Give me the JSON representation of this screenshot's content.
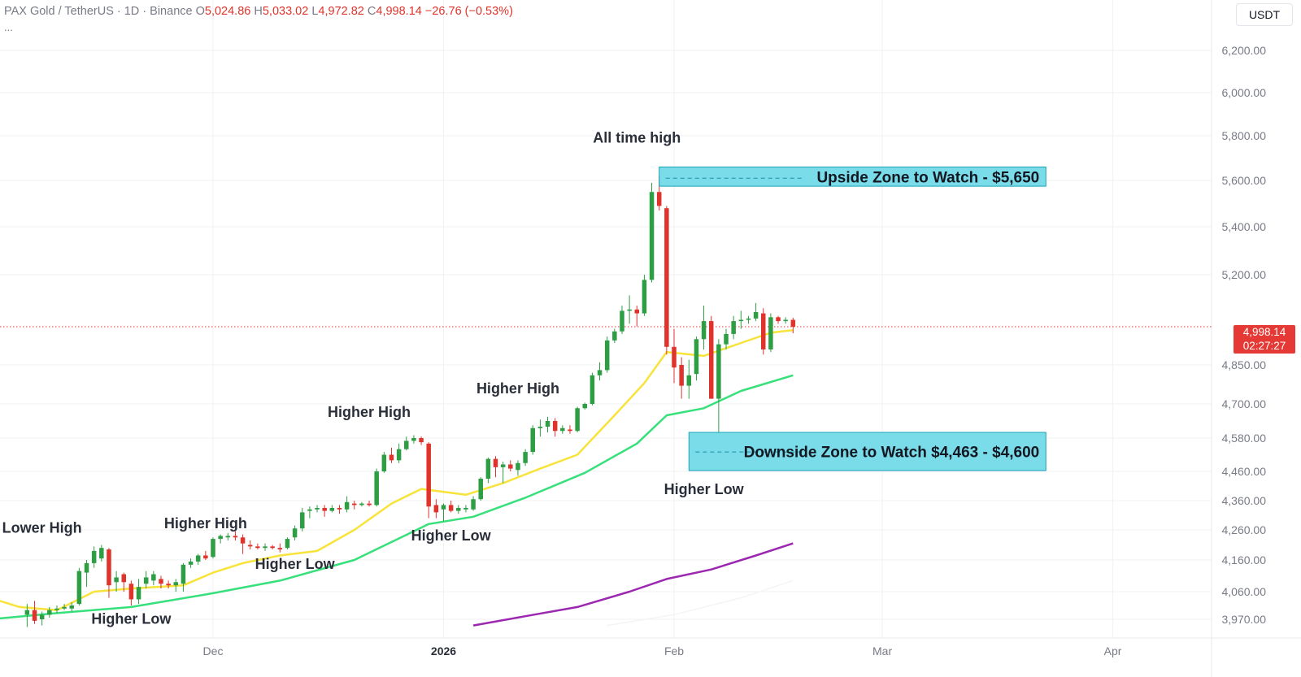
{
  "header": {
    "symbol": "PAX Gold / TetherUS · 1D · Binance",
    "open_label": "O",
    "open": "5,024.86",
    "high_label": "H",
    "high": "5,033.02",
    "low_label": "L",
    "low": "4,972.82",
    "close_label": "C",
    "close": "4,998.14",
    "change": "−26.76 (−0.53%)",
    "more": "..."
  },
  "currency_button": "USDT",
  "price_tag": {
    "price": "4,998.14",
    "countdown": "02:27:27"
  },
  "colors": {
    "up": "#2e9e44",
    "down": "#e0332c",
    "ema_fast": "#f8e33a",
    "ema_mid": "#36e07a",
    "ema_slow": "#9c27b0",
    "zone_fill": "#79dce8",
    "zone_border": "#1aa3b8",
    "grid": "#f0f1f3",
    "axis_text": "#787b86"
  },
  "chart_data": {
    "type": "candlestick",
    "y_axis": {
      "tick_labels": [
        "6,200.00",
        "6,000.00",
        "5,800.00",
        "5,600.00",
        "5,400.00",
        "5,200.00",
        "4,850.00",
        "4,700.00",
        "4,580.00",
        "4,460.00",
        "4,360.00",
        "4,260.00",
        "4,160.00",
        "4,060.00",
        "3,970.00"
      ],
      "tick_values": [
        6200,
        6000,
        5800,
        5600,
        5400,
        5200,
        4850,
        4700,
        4580,
        4460,
        4360,
        4260,
        4160,
        4060,
        3970
      ]
    },
    "x_axis": {
      "labels": [
        {
          "label": "Dec",
          "x": "2025-12-01",
          "bold": false
        },
        {
          "label": "2026",
          "x": "2026-01-01",
          "bold": true
        },
        {
          "label": "Feb",
          "x": "2026-02-01",
          "bold": false
        },
        {
          "label": "Mar",
          "x": "2026-03-01",
          "bold": false
        },
        {
          "label": "Apr",
          "x": "2026-04-01",
          "bold": false
        }
      ]
    },
    "candles": [
      {
        "date": "2025-11-06",
        "o": 3985,
        "h": 4020,
        "l": 3945,
        "c": 4000
      },
      {
        "date": "2025-11-07",
        "o": 4000,
        "h": 4030,
        "l": 3955,
        "c": 3965
      },
      {
        "date": "2025-11-08",
        "o": 3970,
        "h": 3995,
        "l": 3950,
        "c": 3985
      },
      {
        "date": "2025-11-09",
        "o": 3985,
        "h": 4010,
        "l": 3975,
        "c": 4000
      },
      {
        "date": "2025-11-10",
        "o": 4000,
        "h": 4015,
        "l": 3990,
        "c": 4005
      },
      {
        "date": "2025-11-11",
        "o": 4005,
        "h": 4020,
        "l": 4000,
        "c": 4010
      },
      {
        "date": "2025-11-12",
        "o": 4005,
        "h": 4025,
        "l": 3995,
        "c": 4015
      },
      {
        "date": "2025-11-13",
        "o": 4020,
        "h": 4135,
        "l": 4015,
        "c": 4125
      },
      {
        "date": "2025-11-14",
        "o": 4120,
        "h": 4160,
        "l": 4075,
        "c": 4150
      },
      {
        "date": "2025-11-15",
        "o": 4150,
        "h": 4205,
        "l": 4135,
        "c": 4190
      },
      {
        "date": "2025-11-16",
        "o": 4165,
        "h": 4210,
        "l": 4155,
        "c": 4200
      },
      {
        "date": "2025-11-17",
        "o": 4195,
        "h": 4200,
        "l": 4040,
        "c": 4080
      },
      {
        "date": "2025-11-18",
        "o": 4090,
        "h": 4125,
        "l": 4060,
        "c": 4105
      },
      {
        "date": "2025-11-19",
        "o": 4115,
        "h": 4120,
        "l": 4060,
        "c": 4090
      },
      {
        "date": "2025-11-20",
        "o": 4085,
        "h": 4095,
        "l": 4015,
        "c": 4035
      },
      {
        "date": "2025-11-21",
        "o": 4035,
        "h": 4100,
        "l": 4020,
        "c": 4075
      },
      {
        "date": "2025-11-22",
        "o": 4085,
        "h": 4125,
        "l": 4070,
        "c": 4105
      },
      {
        "date": "2025-11-23",
        "o": 4095,
        "h": 4125,
        "l": 4080,
        "c": 4115
      },
      {
        "date": "2025-11-24",
        "o": 4100,
        "h": 4110,
        "l": 4070,
        "c": 4085
      },
      {
        "date": "2025-11-25",
        "o": 4085,
        "h": 4095,
        "l": 4070,
        "c": 4080
      },
      {
        "date": "2025-11-26",
        "o": 4080,
        "h": 4100,
        "l": 4060,
        "c": 4090
      },
      {
        "date": "2025-11-27",
        "o": 4085,
        "h": 4150,
        "l": 4060,
        "c": 4145
      },
      {
        "date": "2025-11-28",
        "o": 4145,
        "h": 4165,
        "l": 4135,
        "c": 4155
      },
      {
        "date": "2025-11-29",
        "o": 4155,
        "h": 4180,
        "l": 4145,
        "c": 4175
      },
      {
        "date": "2025-11-30",
        "o": 4175,
        "h": 4190,
        "l": 4160,
        "c": 4165
      },
      {
        "date": "2025-12-01",
        "o": 4170,
        "h": 4235,
        "l": 4165,
        "c": 4230
      },
      {
        "date": "2025-12-02",
        "o": 4230,
        "h": 4245,
        "l": 4215,
        "c": 4240
      },
      {
        "date": "2025-12-03",
        "o": 4235,
        "h": 4250,
        "l": 4225,
        "c": 4240
      },
      {
        "date": "2025-12-04",
        "o": 4240,
        "h": 4255,
        "l": 4225,
        "c": 4235
      },
      {
        "date": "2025-12-05",
        "o": 4235,
        "h": 4245,
        "l": 4180,
        "c": 4215
      },
      {
        "date": "2025-12-06",
        "o": 4210,
        "h": 4225,
        "l": 4195,
        "c": 4205
      },
      {
        "date": "2025-12-07",
        "o": 4205,
        "h": 4215,
        "l": 4195,
        "c": 4200
      },
      {
        "date": "2025-12-08",
        "o": 4200,
        "h": 4215,
        "l": 4190,
        "c": 4205
      },
      {
        "date": "2025-12-09",
        "o": 4205,
        "h": 4210,
        "l": 4195,
        "c": 4200
      },
      {
        "date": "2025-12-10",
        "o": 4200,
        "h": 4215,
        "l": 4185,
        "c": 4195
      },
      {
        "date": "2025-12-11",
        "o": 4200,
        "h": 4235,
        "l": 4195,
        "c": 4230
      },
      {
        "date": "2025-12-12",
        "o": 4235,
        "h": 4275,
        "l": 4225,
        "c": 4265
      },
      {
        "date": "2025-12-13",
        "o": 4265,
        "h": 4335,
        "l": 4255,
        "c": 4320
      },
      {
        "date": "2025-12-14",
        "o": 4325,
        "h": 4340,
        "l": 4300,
        "c": 4330
      },
      {
        "date": "2025-12-15",
        "o": 4330,
        "h": 4345,
        "l": 4320,
        "c": 4335
      },
      {
        "date": "2025-12-16",
        "o": 4335,
        "h": 4345,
        "l": 4305,
        "c": 4325
      },
      {
        "date": "2025-12-17",
        "o": 4325,
        "h": 4345,
        "l": 4320,
        "c": 4335
      },
      {
        "date": "2025-12-18",
        "o": 4335,
        "h": 4345,
        "l": 4315,
        "c": 4330
      },
      {
        "date": "2025-12-19",
        "o": 4330,
        "h": 4375,
        "l": 4320,
        "c": 4355
      },
      {
        "date": "2025-12-20",
        "o": 4350,
        "h": 4360,
        "l": 4330,
        "c": 4345
      },
      {
        "date": "2025-12-21",
        "o": 4345,
        "h": 4355,
        "l": 4340,
        "c": 4350
      },
      {
        "date": "2025-12-22",
        "o": 4350,
        "h": 4360,
        "l": 4340,
        "c": 4345
      },
      {
        "date": "2025-12-23",
        "o": 4345,
        "h": 4470,
        "l": 4340,
        "c": 4460
      },
      {
        "date": "2025-12-24",
        "o": 4460,
        "h": 4530,
        "l": 4455,
        "c": 4520
      },
      {
        "date": "2025-12-25",
        "o": 4520,
        "h": 4545,
        "l": 4490,
        "c": 4500
      },
      {
        "date": "2025-12-26",
        "o": 4500,
        "h": 4560,
        "l": 4490,
        "c": 4540
      },
      {
        "date": "2025-12-27",
        "o": 4540,
        "h": 4585,
        "l": 4535,
        "c": 4570
      },
      {
        "date": "2025-12-28",
        "o": 4570,
        "h": 4590,
        "l": 4560,
        "c": 4580
      },
      {
        "date": "2025-12-29",
        "o": 4580,
        "h": 4585,
        "l": 4555,
        "c": 4565
      },
      {
        "date": "2025-12-30",
        "o": 4560,
        "h": 4565,
        "l": 4300,
        "c": 4340
      },
      {
        "date": "2025-12-31",
        "o": 4345,
        "h": 4365,
        "l": 4300,
        "c": 4320
      },
      {
        "date": "2026-01-01",
        "o": 4330,
        "h": 4350,
        "l": 4290,
        "c": 4345
      },
      {
        "date": "2026-01-02",
        "o": 4345,
        "h": 4360,
        "l": 4320,
        "c": 4325
      },
      {
        "date": "2026-01-03",
        "o": 4325,
        "h": 4345,
        "l": 4315,
        "c": 4335
      },
      {
        "date": "2026-01-04",
        "o": 4330,
        "h": 4345,
        "l": 4320,
        "c": 4335
      },
      {
        "date": "2026-01-05",
        "o": 4330,
        "h": 4375,
        "l": 4325,
        "c": 4365
      },
      {
        "date": "2026-01-06",
        "o": 4365,
        "h": 4440,
        "l": 4360,
        "c": 4435
      },
      {
        "date": "2026-01-07",
        "o": 4435,
        "h": 4510,
        "l": 4420,
        "c": 4505
      },
      {
        "date": "2026-01-08",
        "o": 4505,
        "h": 4515,
        "l": 4440,
        "c": 4475
      },
      {
        "date": "2026-01-09",
        "o": 4475,
        "h": 4495,
        "l": 4420,
        "c": 4485
      },
      {
        "date": "2026-01-10",
        "o": 4485,
        "h": 4500,
        "l": 4460,
        "c": 4470
      },
      {
        "date": "2026-01-11",
        "o": 4465,
        "h": 4500,
        "l": 4445,
        "c": 4490
      },
      {
        "date": "2026-01-12",
        "o": 4490,
        "h": 4540,
        "l": 4480,
        "c": 4530
      },
      {
        "date": "2026-01-13",
        "o": 4530,
        "h": 4625,
        "l": 4520,
        "c": 4615
      },
      {
        "date": "2026-01-14",
        "o": 4615,
        "h": 4645,
        "l": 4585,
        "c": 4620
      },
      {
        "date": "2026-01-15",
        "o": 4620,
        "h": 4655,
        "l": 4600,
        "c": 4640
      },
      {
        "date": "2026-01-16",
        "o": 4640,
        "h": 4650,
        "l": 4585,
        "c": 4605
      },
      {
        "date": "2026-01-17",
        "o": 4605,
        "h": 4625,
        "l": 4595,
        "c": 4615
      },
      {
        "date": "2026-01-18",
        "o": 4610,
        "h": 4625,
        "l": 4595,
        "c": 4605
      },
      {
        "date": "2026-01-19",
        "o": 4605,
        "h": 4690,
        "l": 4600,
        "c": 4685
      },
      {
        "date": "2026-01-20",
        "o": 4685,
        "h": 4705,
        "l": 4680,
        "c": 4700
      },
      {
        "date": "2026-01-21",
        "o": 4700,
        "h": 4820,
        "l": 4695,
        "c": 4810
      },
      {
        "date": "2026-01-22",
        "o": 4810,
        "h": 4860,
        "l": 4790,
        "c": 4830
      },
      {
        "date": "2026-01-23",
        "o": 4830,
        "h": 4960,
        "l": 4820,
        "c": 4945
      },
      {
        "date": "2026-01-24",
        "o": 4945,
        "h": 4990,
        "l": 4935,
        "c": 4980
      },
      {
        "date": "2026-01-25",
        "o": 4980,
        "h": 5080,
        "l": 4970,
        "c": 5060
      },
      {
        "date": "2026-01-26",
        "o": 5060,
        "h": 5120,
        "l": 5010,
        "c": 5065
      },
      {
        "date": "2026-01-27",
        "o": 5065,
        "h": 5080,
        "l": 5000,
        "c": 5050
      },
      {
        "date": "2026-01-28",
        "o": 5050,
        "h": 5200,
        "l": 5040,
        "c": 5180
      },
      {
        "date": "2026-01-29",
        "o": 5180,
        "h": 5590,
        "l": 5170,
        "c": 5550
      },
      {
        "date": "2026-01-30",
        "o": 5550,
        "h": 5620,
        "l": 5470,
        "c": 5490
      },
      {
        "date": "2026-01-31",
        "o": 5480,
        "h": 5490,
        "l": 4890,
        "c": 4920
      },
      {
        "date": "2026-02-01",
        "o": 4920,
        "h": 4990,
        "l": 4780,
        "c": 4840
      },
      {
        "date": "2026-02-02",
        "o": 4850,
        "h": 4880,
        "l": 4720,
        "c": 4770
      },
      {
        "date": "2026-02-03",
        "o": 4770,
        "h": 4870,
        "l": 4720,
        "c": 4810
      },
      {
        "date": "2026-02-04",
        "o": 4815,
        "h": 4960,
        "l": 4790,
        "c": 4950
      },
      {
        "date": "2026-02-05",
        "o": 4950,
        "h": 5080,
        "l": 4910,
        "c": 5020
      },
      {
        "date": "2026-02-06",
        "o": 5020,
        "h": 5040,
        "l": 4720,
        "c": 4720
      },
      {
        "date": "2026-02-07",
        "o": 4720,
        "h": 4950,
        "l": 4600,
        "c": 4930
      },
      {
        "date": "2026-02-08",
        "o": 4930,
        "h": 4990,
        "l": 4910,
        "c": 4970
      },
      {
        "date": "2026-02-09",
        "o": 4970,
        "h": 5040,
        "l": 4950,
        "c": 5020
      },
      {
        "date": "2026-02-10",
        "o": 5020,
        "h": 5060,
        "l": 4990,
        "c": 5025
      },
      {
        "date": "2026-02-11",
        "o": 5025,
        "h": 5040,
        "l": 5010,
        "c": 5030
      },
      {
        "date": "2026-02-12",
        "o": 5030,
        "h": 5090,
        "l": 5020,
        "c": 5055
      },
      {
        "date": "2026-02-13",
        "o": 5050,
        "h": 5070,
        "l": 4890,
        "c": 4910
      },
      {
        "date": "2026-02-14",
        "o": 4910,
        "h": 5050,
        "l": 4900,
        "c": 5035
      },
      {
        "date": "2026-02-15",
        "o": 5035,
        "h": 5040,
        "l": 5010,
        "c": 5020
      },
      {
        "date": "2026-02-16",
        "o": 5020,
        "h": 5035,
        "l": 5010,
        "c": 5025
      },
      {
        "date": "2026-02-17",
        "o": 5024.86,
        "h": 5033.02,
        "l": 4972.82,
        "c": 4998.14
      }
    ],
    "ema_fast": [
      {
        "date": "2025-11-01",
        "v": 4040
      },
      {
        "date": "2025-11-05",
        "v": 4010
      },
      {
        "date": "2025-11-10",
        "v": 4000
      },
      {
        "date": "2025-11-15",
        "v": 4060
      },
      {
        "date": "2025-11-20",
        "v": 4070
      },
      {
        "date": "2025-11-27",
        "v": 4080
      },
      {
        "date": "2025-12-01",
        "v": 4120
      },
      {
        "date": "2025-12-05",
        "v": 4150
      },
      {
        "date": "2025-12-10",
        "v": 4175
      },
      {
        "date": "2025-12-15",
        "v": 4190
      },
      {
        "date": "2025-12-20",
        "v": 4260
      },
      {
        "date": "2025-12-25",
        "v": 4350
      },
      {
        "date": "2025-12-29",
        "v": 4400
      },
      {
        "date": "2026-01-04",
        "v": 4380
      },
      {
        "date": "2026-01-09",
        "v": 4420
      },
      {
        "date": "2026-01-14",
        "v": 4470
      },
      {
        "date": "2026-01-19",
        "v": 4520
      },
      {
        "date": "2026-01-24",
        "v": 4660
      },
      {
        "date": "2026-01-28",
        "v": 4780
      },
      {
        "date": "2026-01-31",
        "v": 4900
      },
      {
        "date": "2026-02-05",
        "v": 4885
      },
      {
        "date": "2026-02-10",
        "v": 4935
      },
      {
        "date": "2026-02-14",
        "v": 4975
      },
      {
        "date": "2026-02-17",
        "v": 4985
      }
    ],
    "ema_mid": [
      {
        "date": "2025-11-01",
        "v": 3970
      },
      {
        "date": "2025-11-10",
        "v": 3990
      },
      {
        "date": "2025-11-20",
        "v": 4010
      },
      {
        "date": "2025-12-01",
        "v": 4055
      },
      {
        "date": "2025-12-10",
        "v": 4095
      },
      {
        "date": "2025-12-20",
        "v": 4160
      },
      {
        "date": "2025-12-30",
        "v": 4280
      },
      {
        "date": "2026-01-05",
        "v": 4305
      },
      {
        "date": "2026-01-12",
        "v": 4370
      },
      {
        "date": "2026-01-20",
        "v": 4455
      },
      {
        "date": "2026-01-27",
        "v": 4560
      },
      {
        "date": "2026-01-31",
        "v": 4660
      },
      {
        "date": "2026-02-05",
        "v": 4685
      },
      {
        "date": "2026-02-10",
        "v": 4750
      },
      {
        "date": "2026-02-17",
        "v": 4810
      }
    ],
    "ema_slow": [
      {
        "date": "2026-01-05",
        "v": 3950
      },
      {
        "date": "2026-01-12",
        "v": 3980
      },
      {
        "date": "2026-01-19",
        "v": 4010
      },
      {
        "date": "2026-01-26",
        "v": 4060
      },
      {
        "date": "2026-01-31",
        "v": 4100
      },
      {
        "date": "2026-02-06",
        "v": 4130
      },
      {
        "date": "2026-02-12",
        "v": 4175
      },
      {
        "date": "2026-02-17",
        "v": 4215
      }
    ],
    "ema_slowest": [
      {
        "date": "2026-01-23",
        "v": 3950
      },
      {
        "date": "2026-02-01",
        "v": 3985
      },
      {
        "date": "2026-02-10",
        "v": 4040
      },
      {
        "date": "2026-02-17",
        "v": 4095
      }
    ],
    "last_price": 4998.14,
    "zones": [
      {
        "label": "Upside Zone to Watch - $5,650",
        "from_date": "2026-01-30",
        "to_date": "2026-03-23",
        "low": 5575,
        "high": 5660,
        "mid": 5610
      },
      {
        "label": "Downside Zone to Watch $4,463 - $4,600",
        "from_date": "2026-02-03",
        "to_date": "2026-03-23",
        "low": 4463,
        "high": 4600,
        "mid": 4530
      }
    ],
    "annotations": [
      {
        "text": "All time high",
        "date": "2026-01-27",
        "value": 5770
      },
      {
        "text": "Lower High",
        "date": "2025-11-08",
        "value": 4250
      },
      {
        "text": "Higher Low",
        "date": "2025-11-20",
        "value": 3955
      },
      {
        "text": "Higher High",
        "date": "2025-11-30",
        "value": 4265
      },
      {
        "text": "Higher Low",
        "date": "2025-12-12",
        "value": 4132
      },
      {
        "text": "Higher High",
        "date": "2025-12-22",
        "value": 4655
      },
      {
        "text": "Higher Low",
        "date": "2026-01-02",
        "value": 4225
      },
      {
        "text": "Higher High",
        "date": "2026-01-11",
        "value": 4740
      },
      {
        "text": "Higher Low",
        "date": "2026-02-05",
        "value": 4382
      }
    ]
  }
}
